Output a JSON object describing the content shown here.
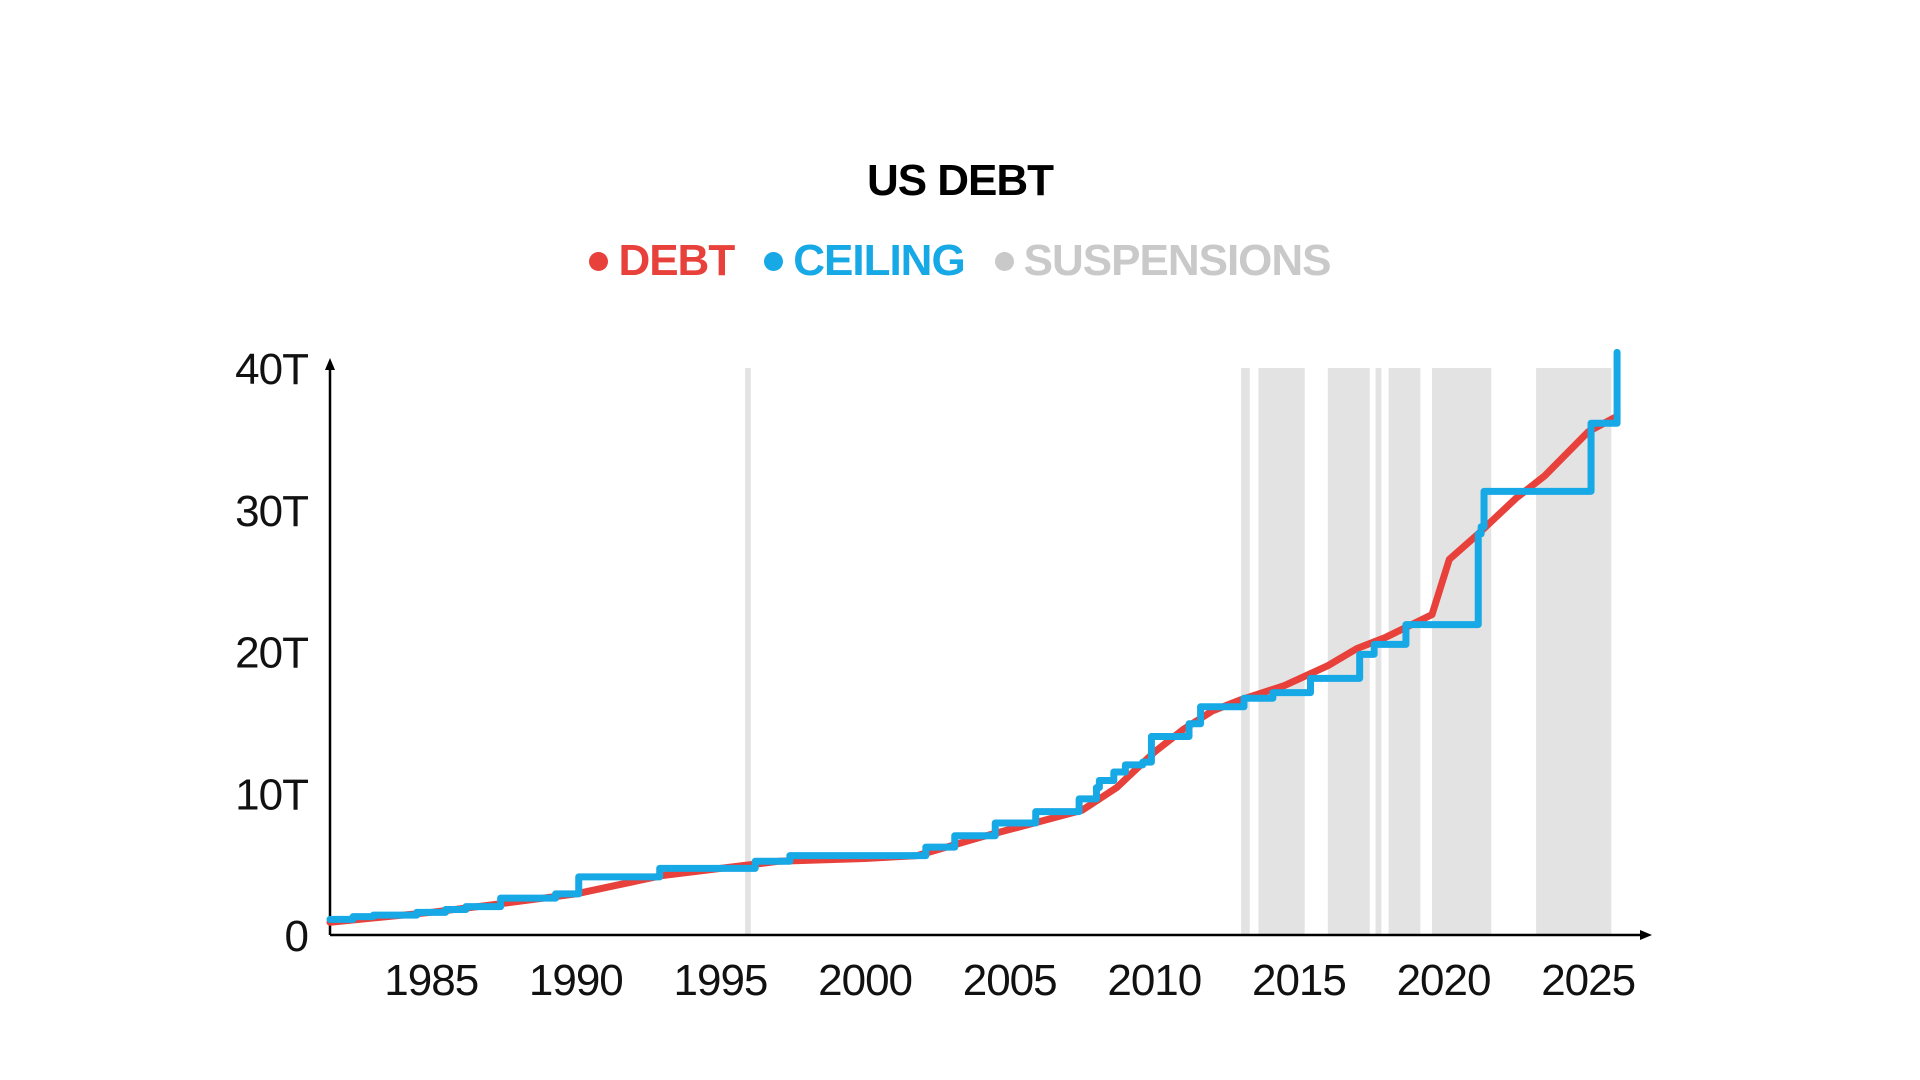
{
  "chart_data": {
    "type": "line",
    "title": "US DEBT",
    "legend_placement": "top-center",
    "grid": false,
    "xlim": [
      1981.5,
      2027
    ],
    "ylim": [
      0,
      40
    ],
    "x_ticks": [
      1985,
      1990,
      1995,
      2000,
      2005,
      2010,
      2015,
      2020,
      2025
    ],
    "x_tick_labels": [
      "1985",
      "1990",
      "1995",
      "2000",
      "2005",
      "2010",
      "2015",
      "2020",
      "2025"
    ],
    "y_ticks": [
      0,
      10,
      20,
      30,
      40
    ],
    "y_tick_labels": [
      "0",
      "10T",
      "20T",
      "30T",
      "40T"
    ],
    "series": [
      {
        "name": "DEBT",
        "color": "#e8403a",
        "style": "line",
        "points": [
          [
            1981.5,
            0.9
          ],
          [
            1985,
            1.6
          ],
          [
            1987,
            2.1
          ],
          [
            1990,
            2.9
          ],
          [
            1993,
            4.2
          ],
          [
            1995,
            4.7
          ],
          [
            1997,
            5.2
          ],
          [
            2000,
            5.4
          ],
          [
            2001.8,
            5.6
          ],
          [
            2004,
            6.9
          ],
          [
            2007.5,
            8.8
          ],
          [
            2008.7,
            10.4
          ],
          [
            2010,
            12.9
          ],
          [
            2011,
            14.5
          ],
          [
            2012,
            15.8
          ],
          [
            2013,
            16.6
          ],
          [
            2014.5,
            17.6
          ],
          [
            2016,
            19.0
          ],
          [
            2017,
            20.2
          ],
          [
            2018,
            21.0
          ],
          [
            2019.6,
            22.6
          ],
          [
            2020.2,
            26.5
          ],
          [
            2021.2,
            28.3
          ],
          [
            2022.5,
            30.8
          ],
          [
            2023.5,
            32.4
          ],
          [
            2025,
            35.5
          ],
          [
            2026,
            36.6
          ]
        ]
      },
      {
        "name": "CEILING",
        "color": "#17a8e6",
        "style": "step",
        "points": [
          [
            1981.5,
            1.1
          ],
          [
            1982.3,
            1.3
          ],
          [
            1983.0,
            1.4
          ],
          [
            1984.5,
            1.6
          ],
          [
            1985.5,
            1.8
          ],
          [
            1986.2,
            2.0
          ],
          [
            1987.4,
            2.6
          ],
          [
            1989.3,
            2.9
          ],
          [
            1990.1,
            4.1
          ],
          [
            1992.9,
            4.7
          ],
          [
            1996.2,
            5.2
          ],
          [
            1997.4,
            5.6
          ],
          [
            2002.1,
            6.2
          ],
          [
            2003.1,
            7.0
          ],
          [
            2004.5,
            7.9
          ],
          [
            2005.9,
            8.7
          ],
          [
            2007.4,
            9.6
          ],
          [
            2008.0,
            10.4
          ],
          [
            2008.1,
            10.9
          ],
          [
            2008.6,
            11.5
          ],
          [
            2009.0,
            12.0
          ],
          [
            2009.6,
            12.2
          ],
          [
            2009.9,
            14.0
          ],
          [
            2011.2,
            14.9
          ],
          [
            2011.6,
            16.1
          ],
          [
            2013.1,
            16.7
          ],
          [
            2014.1,
            17.1
          ],
          [
            2015.4,
            18.1
          ],
          [
            2017.1,
            19.8
          ],
          [
            2017.6,
            20.5
          ],
          [
            2018.7,
            21.9
          ],
          [
            2021.2,
            28.3
          ],
          [
            2021.3,
            28.8
          ],
          [
            2021.4,
            31.3
          ],
          [
            2025.1,
            36.1
          ],
          [
            2026.0,
            41.1
          ]
        ],
        "x_end": 2026.0
      }
    ],
    "suspensions": {
      "name": "SUSPENSIONS",
      "color": "#e3e3e3",
      "periods": [
        [
          1995.85,
          1996.05
        ],
        [
          2013.0,
          2013.3
        ],
        [
          2013.6,
          2015.2
        ],
        [
          2016.0,
          2017.45
        ],
        [
          2017.65,
          2017.85
        ],
        [
          2018.1,
          2019.2
        ],
        [
          2019.6,
          2021.65
        ],
        [
          2023.2,
          2025.8
        ]
      ]
    }
  },
  "legend": {
    "items": [
      {
        "label": "DEBT",
        "color": "#e8403a"
      },
      {
        "label": "CEILING",
        "color": "#17a8e6"
      },
      {
        "label": "SUSPENSIONS",
        "color": "#c9c9c9"
      }
    ]
  }
}
